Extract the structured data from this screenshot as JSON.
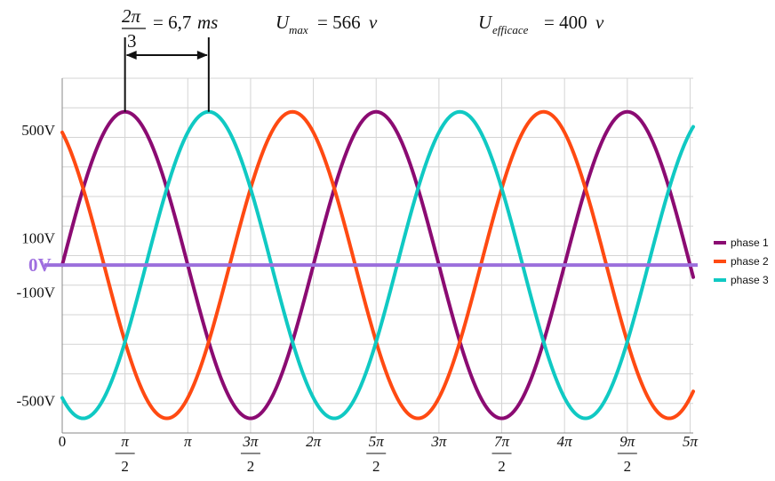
{
  "chart_data": {
    "type": "line",
    "title": "",
    "xlabel": "",
    "ylabel": "",
    "xlim": [
      0,
      5.025
    ],
    "ylim": [
      -620,
      690
    ],
    "x_unit_note": "multiples of pi",
    "series": [
      {
        "name": "phase 1",
        "color": "#8b0b72",
        "amplitude": 566,
        "phase_deg": 0
      },
      {
        "name": "phase 2",
        "color": "#ff4a12",
        "amplitude": 566,
        "phase_deg": 120
      },
      {
        "name": "phase 3",
        "color": "#10c9c3",
        "amplitude": 566,
        "phase_deg": -120
      }
    ],
    "y_ticks": [
      {
        "value": 500,
        "label": "500V"
      },
      {
        "value": 100,
        "label": "100V"
      },
      {
        "value": -100,
        "label": "-100V"
      },
      {
        "value": -500,
        "label": "-500V"
      }
    ],
    "x_ticks": [
      {
        "value": 0,
        "num": "0",
        "den": ""
      },
      {
        "value": 0.5,
        "num": "π",
        "den": "2"
      },
      {
        "value": 1.0,
        "num": "π",
        "den": ""
      },
      {
        "value": 1.5,
        "num": "3π",
        "den": "2"
      },
      {
        "value": 2.0,
        "num": "2π",
        "den": ""
      },
      {
        "value": 2.5,
        "num": "5π",
        "den": "2"
      },
      {
        "value": 3.0,
        "num": "3π",
        "den": ""
      },
      {
        "value": 3.5,
        "num": "7π",
        "den": "2"
      },
      {
        "value": 4.0,
        "num": "4π",
        "den": ""
      },
      {
        "value": 4.5,
        "num": "9π",
        "den": "2"
      },
      {
        "value": 5.0,
        "num": "5π",
        "den": ""
      }
    ],
    "zero_line": {
      "label": "0V",
      "color": "#9b6fdc"
    },
    "legend": {
      "placement": "right"
    },
    "grid": true,
    "annotations": {
      "period_fraction_num": "2π",
      "period_fraction_den": "3",
      "period_value": "= 6,7",
      "period_unit": "ms",
      "umax_symbol": "U",
      "umax_sub": "max",
      "umax_value": "= 566",
      "umax_unit": "v",
      "ueff_symbol": "U",
      "ueff_sub": "efficace",
      "ueff_value": "= 400",
      "ueff_unit": "v",
      "arrow_from_x": 0.5,
      "arrow_to_x": 1.1667
    }
  }
}
